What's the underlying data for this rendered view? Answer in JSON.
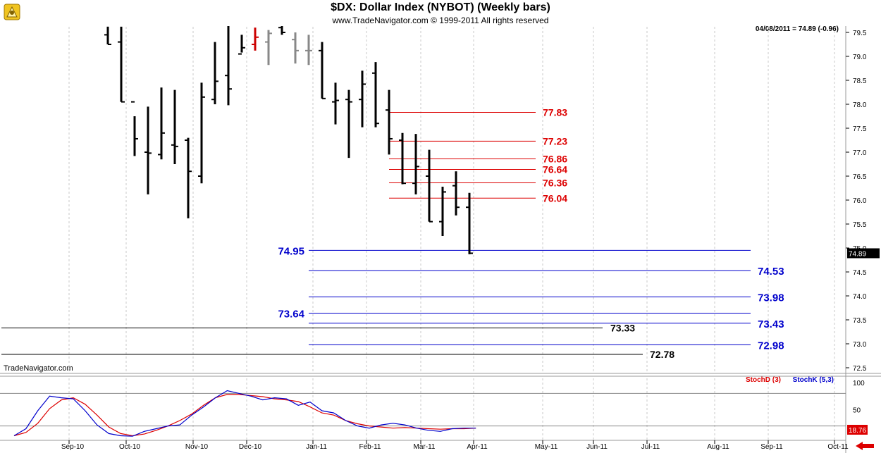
{
  "header": {
    "title": "$DX:  Dollar Index (NYBOT)  (Weekly bars)",
    "subtitle": "www.TradeNavigator.com © 1999-2011 All rights reserved",
    "quote": "04/08/2011 = 74.89 (-0.96)"
  },
  "watermark": "TradeNavigator.com",
  "chart_data": [
    {
      "type": "ohlc",
      "y_ticks": [
        "79.5",
        "79.0",
        "78.5",
        "78.0",
        "77.5",
        "77.0",
        "76.5",
        "76.0",
        "75.5",
        "75.0",
        "74.5",
        "74.0",
        "73.5",
        "73.0",
        "72.5"
      ],
      "x_ticks": [
        "Sep-10",
        "Oct-10",
        "Nov-10",
        "Dec-10",
        "Jan-11",
        "Feb-11",
        "Mar-11",
        "Apr-11",
        "May-11",
        "Jun-11",
        "Jul-11",
        "Aug-11",
        "Sep-11",
        "Oct-11"
      ],
      "grid": true,
      "last_price_label": "74.89",
      "last_price": 74.89,
      "bars": [
        {
          "h": 79.62,
          "l": 79.25,
          "o": 79.45,
          "c": 79.25,
          "color": "#000000"
        },
        {
          "h": 79.62,
          "l": 78.05,
          "o": 79.3,
          "c": 78.05,
          "color": "#000000"
        },
        {
          "h": 77.75,
          "l": 76.92,
          "o": 78.05,
          "c": 77.28,
          "color": "#000000"
        },
        {
          "h": 77.95,
          "l": 76.12,
          "o": 77.0,
          "c": 76.98,
          "color": "#000000"
        },
        {
          "h": 78.35,
          "l": 76.85,
          "o": 76.95,
          "c": 77.4,
          "color": "#000000"
        },
        {
          "h": 78.3,
          "l": 76.75,
          "o": 77.15,
          "c": 77.12,
          "color": "#000000"
        },
        {
          "h": 77.3,
          "l": 75.62,
          "o": 77.25,
          "c": 76.6,
          "color": "#000000"
        },
        {
          "h": 78.45,
          "l": 76.35,
          "o": 76.5,
          "c": 78.15,
          "color": "#000000"
        },
        {
          "h": 79.3,
          "l": 78.0,
          "o": 78.1,
          "c": 78.48,
          "color": "#000000"
        },
        {
          "h": 79.7,
          "l": 77.98,
          "o": 78.6,
          "c": 78.32,
          "color": "#000000"
        },
        {
          "h": 79.45,
          "l": 79.08,
          "o": 79.05,
          "c": 79.18,
          "color": "#000000"
        },
        {
          "h": 79.6,
          "l": 79.12,
          "o": 79.25,
          "c": 79.4,
          "color": "#cc0000"
        },
        {
          "h": 79.55,
          "l": 78.82,
          "o": 79.3,
          "c": 79.48,
          "color": "#888888"
        },
        {
          "h": 79.7,
          "l": 79.45,
          "o": 79.6,
          "c": 79.5,
          "color": "#000000"
        },
        {
          "h": 79.5,
          "l": 78.85,
          "o": 79.35,
          "c": 79.12,
          "color": "#888888"
        },
        {
          "h": 79.45,
          "l": 78.82,
          "o": 79.12,
          "c": 79.12,
          "color": "#888888"
        },
        {
          "h": 79.3,
          "l": 78.12,
          "o": 79.12,
          "c": 78.12,
          "color": "#000000"
        },
        {
          "h": 78.45,
          "l": 77.58,
          "o": 78.05,
          "c": 78.08,
          "color": "#000000"
        },
        {
          "h": 78.3,
          "l": 76.88,
          "o": 78.1,
          "c": 78.05,
          "color": "#000000"
        },
        {
          "h": 78.7,
          "l": 77.52,
          "o": 78.1,
          "c": 78.42,
          "color": "#000000"
        },
        {
          "h": 78.88,
          "l": 77.52,
          "o": 78.65,
          "c": 77.6,
          "color": "#000000"
        },
        {
          "h": 78.3,
          "l": 76.95,
          "o": 77.88,
          "c": 77.28,
          "color": "#000000"
        },
        {
          "h": 77.4,
          "l": 76.33,
          "o": 77.25,
          "c": 76.35,
          "color": "#000000"
        },
        {
          "h": 77.38,
          "l": 76.12,
          "o": 76.35,
          "c": 76.7,
          "color": "#000000"
        },
        {
          "h": 77.05,
          "l": 75.55,
          "o": 76.5,
          "c": 75.55,
          "color": "#000000"
        },
        {
          "h": 76.28,
          "l": 75.25,
          "o": 75.55,
          "c": 76.17,
          "color": "#000000"
        },
        {
          "h": 76.6,
          "l": 75.68,
          "o": 76.3,
          "c": 75.85,
          "color": "#000000"
        },
        {
          "h": 76.15,
          "l": 74.87,
          "o": 75.85,
          "c": 74.89,
          "color": "#000000"
        }
      ],
      "levels": [
        {
          "label": "77.83",
          "value": 77.83,
          "color": "#dd0000"
        },
        {
          "label": "77.23",
          "value": 77.23,
          "color": "#dd0000"
        },
        {
          "label": "76.86",
          "value": 76.86,
          "color": "#dd0000"
        },
        {
          "label": "76.64",
          "value": 76.64,
          "color": "#dd0000"
        },
        {
          "label": "76.36",
          "value": 76.36,
          "color": "#dd0000"
        },
        {
          "label": "76.04",
          "value": 76.04,
          "color": "#dd0000"
        },
        {
          "label": "74.95",
          "value": 74.95,
          "color": "#0000cc"
        },
        {
          "label": "74.53",
          "value": 74.53,
          "color": "#0000cc"
        },
        {
          "label": "73.98",
          "value": 73.98,
          "color": "#0000cc"
        },
        {
          "label": "73.64",
          "value": 73.64,
          "color": "#0000cc"
        },
        {
          "label": "73.43",
          "value": 73.43,
          "color": "#0000cc"
        },
        {
          "label": "72.98",
          "value": 72.98,
          "color": "#0000cc"
        },
        {
          "label": "73.33",
          "value": 73.33,
          "color": "#000000"
        },
        {
          "label": "72.78",
          "value": 72.78,
          "color": "#000000"
        }
      ]
    },
    {
      "type": "line",
      "series": [
        {
          "name": "StochD (3)",
          "color": "#dd0000",
          "values": [
            2,
            8,
            25,
            52,
            68,
            72,
            60,
            40,
            18,
            6,
            2,
            5,
            12,
            20,
            30,
            42,
            58,
            72,
            78,
            78,
            76,
            74,
            70,
            68,
            65,
            55,
            44,
            40,
            30,
            24,
            20,
            18,
            16,
            17,
            16,
            15,
            14,
            15,
            15,
            16
          ]
        },
        {
          "name": "StochK (5,3)",
          "color": "#0000cc",
          "values": [
            2,
            15,
            48,
            75,
            72,
            70,
            48,
            22,
            6,
            2,
            1,
            10,
            15,
            20,
            22,
            40,
            55,
            72,
            85,
            80,
            75,
            68,
            72,
            70,
            58,
            64,
            48,
            44,
            30,
            20,
            16,
            22,
            25,
            22,
            16,
            12,
            10,
            15,
            16,
            16
          ]
        }
      ],
      "y_ticks": [
        "100",
        "50"
      ],
      "last_value_label": "18.76"
    }
  ]
}
